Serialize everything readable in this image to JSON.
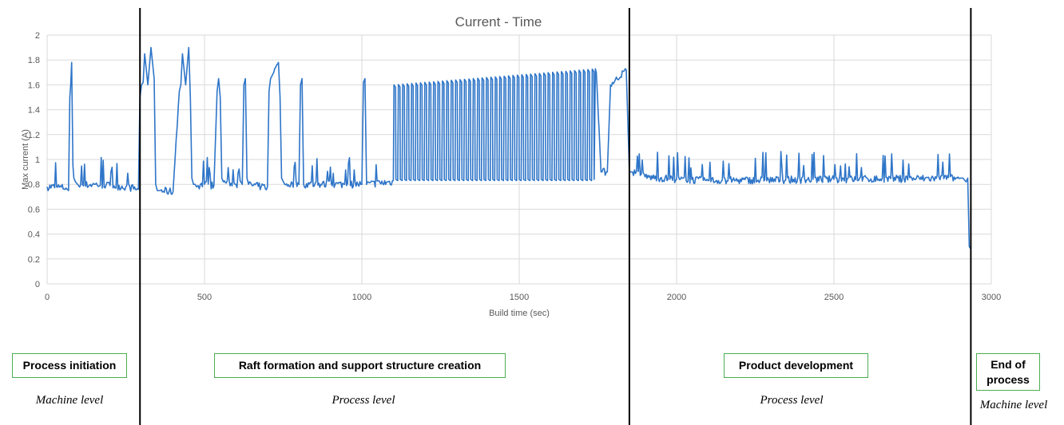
{
  "chart_data": {
    "type": "line",
    "title": "Current - Time",
    "xlabel": "Build time (sec)",
    "ylabel": "Max current (A)",
    "xlim": [
      0,
      3000
    ],
    "ylim": [
      0,
      2
    ],
    "x_ticks": [
      "0",
      "500",
      "1000",
      "1500",
      "2000",
      "2500",
      "3000"
    ],
    "y_ticks": [
      "0",
      "0.2",
      "0.4",
      "0.6",
      "0.8",
      "1",
      "1.2",
      "1.4",
      "1.6",
      "1.8",
      "2"
    ],
    "grid": true,
    "line_color": "#2e75c8",
    "series": [
      {
        "x": [
          0,
          30,
          60,
          68,
          72,
          75,
          78,
          82,
          85,
          90,
          100,
          150,
          200,
          250,
          290,
          295,
          300,
          305,
          310,
          320,
          330,
          340,
          345,
          350,
          360,
          400,
          420,
          425,
          430,
          440,
          450,
          455,
          460,
          465,
          470,
          475,
          480,
          500,
          530,
          540,
          545,
          550,
          555,
          560,
          600,
          620,
          625,
          630,
          635,
          640,
          680,
          700,
          705,
          710,
          720,
          735,
          740,
          745,
          755,
          800,
          805,
          810,
          815,
          1000,
          1005,
          1010,
          1015,
          1100,
          1500,
          1700,
          1710,
          1720,
          1730,
          1745,
          1760,
          1780,
          1790,
          1840,
          1850,
          1860,
          1900,
          2000,
          2100,
          2500,
          2900,
          2910,
          2920,
          2925,
          2930,
          2935
        ],
        "y": [
          0.78,
          0.78,
          0.77,
          0.75,
          1.5,
          1.6,
          1.78,
          0.95,
          0.85,
          0.82,
          0.79,
          0.8,
          0.79,
          0.78,
          0.76,
          1.5,
          1.6,
          1.62,
          1.85,
          1.6,
          1.9,
          1.65,
          0.8,
          0.75,
          0.75,
          0.74,
          1.55,
          1.6,
          1.85,
          1.6,
          1.9,
          1.5,
          0.85,
          0.8,
          0.8,
          0.78,
          0.79,
          0.8,
          0.79,
          1.55,
          1.65,
          1.5,
          0.85,
          0.82,
          0.8,
          0.8,
          1.6,
          1.65,
          0.85,
          0.8,
          0.78,
          0.78,
          1.55,
          1.65,
          1.7,
          1.78,
          1.5,
          0.85,
          0.8,
          0.8,
          1.6,
          1.65,
          0.8,
          0.8,
          1.62,
          1.65,
          0.8,
          0.82,
          0.85,
          0.85,
          1.72,
          1.78,
          1.75,
          1.7,
          0.9,
          0.9,
          1.6,
          1.72,
          0.9,
          0.9,
          0.86,
          0.84,
          0.83,
          0.84,
          0.85,
          0.85,
          0.82,
          0.85,
          0.3,
          0.28
        ],
        "oscillations": [
          {
            "from": 300,
            "to": 1840,
            "low": 0.8,
            "high": 1.68,
            "note": "repeated square pulses"
          }
        ]
      }
    ]
  },
  "phases": [
    {
      "label": "Process initiation",
      "level": "Machine level"
    },
    {
      "label": "Raft formation and support structure creation",
      "level": "Process level"
    },
    {
      "label": "Product development",
      "level": "Process level"
    },
    {
      "label": "End of process",
      "level": "Machine level"
    }
  ],
  "phase_boundaries_sec": [
    295,
    1850,
    2935
  ],
  "colors": {
    "line": "#2e75c8",
    "grid": "#d9d9d9",
    "boundary": "#000000",
    "box_border": "#4caf50"
  }
}
